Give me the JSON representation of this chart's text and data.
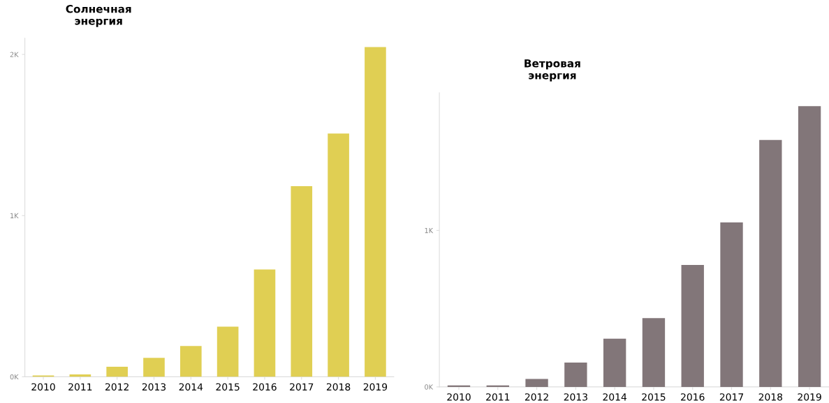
{
  "chart_data": [
    {
      "type": "bar",
      "title": "Солнечная\nэнергия",
      "categories": [
        "2010",
        "2011",
        "2012",
        "2013",
        "2014",
        "2015",
        "2016",
        "2017",
        "2018",
        "2019"
      ],
      "values": [
        8,
        15,
        62,
        118,
        191,
        311,
        666,
        1183,
        1509,
        2046
      ],
      "color": "#e0cf53",
      "ylim": [
        0,
        2100
      ],
      "yticks": [
        {
          "value": 0,
          "label": "0K"
        },
        {
          "value": 1000,
          "label": "1K"
        },
        {
          "value": 2000,
          "label": "2K"
        }
      ],
      "grid": false
    },
    {
      "type": "bar",
      "title": "Ветровая\nэнергия",
      "categories": [
        "2010",
        "2011",
        "2012",
        "2013",
        "2014",
        "2015",
        "2016",
        "2017",
        "2018",
        "2019"
      ],
      "values": [
        10,
        10,
        51,
        155,
        308,
        439,
        779,
        1051,
        1578,
        1794
      ],
      "color": "#827679",
      "ylim": [
        0,
        1880
      ],
      "yticks": [
        {
          "value": 0,
          "label": "0K"
        },
        {
          "value": 1000,
          "label": "1K"
        }
      ],
      "grid": false
    }
  ]
}
